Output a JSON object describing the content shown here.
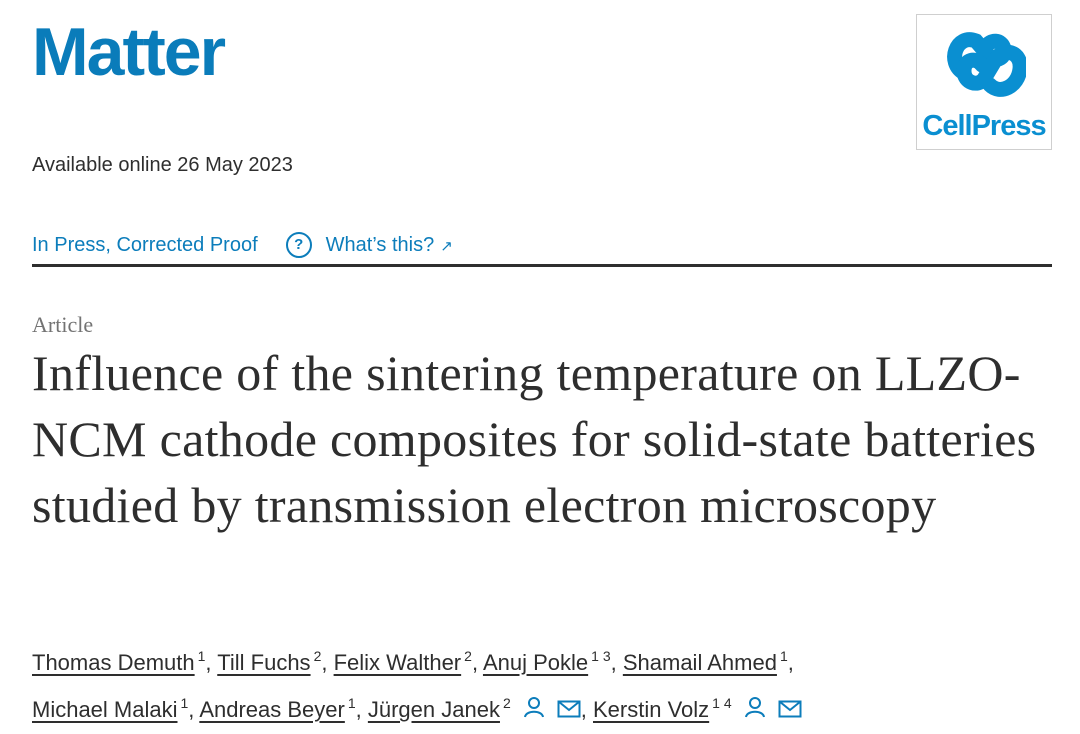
{
  "header": {
    "journal_name": "Matter",
    "publisher_name": "CellPress",
    "brand_color": "#0a7cba"
  },
  "availability": {
    "text": "Available online 26 May 2023"
  },
  "status": {
    "label": "In Press, Corrected Proof",
    "help_link_label": "What’s this?",
    "help_icon_glyph": "?",
    "external_icon_glyph": "↗",
    "link_color": "#0c7dbb"
  },
  "article": {
    "type": "Article",
    "title": "Influence of the sintering temperature on LLZO-NCM cathode composites for solid-state batteries studied by transmission electron microscopy"
  },
  "authors": [
    {
      "name": "Thomas Demuth",
      "affiliations": "1",
      "separator": ","
    },
    {
      "name": "Till Fuchs",
      "affiliations": "2",
      "separator": ","
    },
    {
      "name": "Felix Walther",
      "affiliations": "2",
      "separator": ","
    },
    {
      "name": "Anuj Pokle",
      "affiliations": "1 3",
      "separator": ","
    },
    {
      "name": "Shamail Ahmed",
      "affiliations": "1",
      "separator": ","
    },
    {
      "name": "Michael Malaki",
      "affiliations": "1",
      "separator": ","
    },
    {
      "name": "Andreas Beyer",
      "affiliations": "1",
      "separator": ","
    },
    {
      "name": "Jürgen Janek",
      "affiliations": "2",
      "separator": ","
    },
    {
      "name": "Kerstin Volz",
      "affiliations": "1 4",
      "separator": ""
    }
  ],
  "icons": {
    "corresponding_author": "person-icon",
    "email": "email-icon"
  }
}
